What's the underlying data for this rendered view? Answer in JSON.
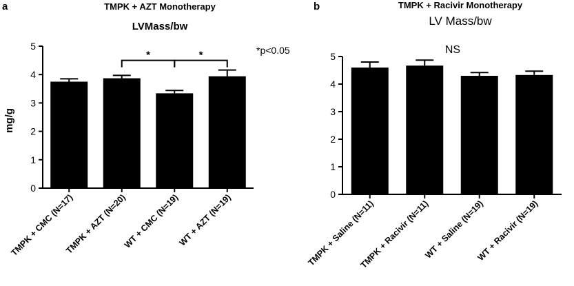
{
  "chart_data": [
    {
      "type": "bar",
      "panel_label": "a",
      "title": "TMPK + AZT Monotherapy",
      "subtitle": "LVMass/bw",
      "xlabel": "",
      "ylabel": "mg/g",
      "ylim": [
        0,
        5
      ],
      "yticks": [
        "0",
        "1",
        "2",
        "3",
        "4",
        "5"
      ],
      "categories": [
        "TMPK + CMC (N=17)",
        "TMPK + AZT (N=20)",
        "WT + CMC (N=19)",
        "WT + AZT (N=19)"
      ],
      "values": [
        3.75,
        3.87,
        3.34,
        3.94
      ],
      "errors": [
        0.1,
        0.1,
        0.1,
        0.22
      ],
      "bar_color": "#000000",
      "grid": false,
      "annotations": [
        {
          "text": "*",
          "from": 1,
          "to": 2,
          "y": 4.5
        },
        {
          "text": "*",
          "from": 2,
          "to": 3,
          "y": 4.5
        }
      ],
      "note": "*p<0.05"
    },
    {
      "type": "bar",
      "panel_label": "b",
      "title": "TMPK + Racivir Monotherapy",
      "subtitle": "LV Mass/bw",
      "xlabel": "",
      "ylabel": "",
      "ylim": [
        0,
        5
      ],
      "yticks": [
        "0",
        "1",
        "2",
        "3",
        "4",
        "5"
      ],
      "categories": [
        "TMPK + Saline (N=11)",
        "TMPK + Racivir (N=11)",
        "WT + Saline (N=19)",
        "WT + Racivir (N=19)"
      ],
      "values": [
        4.6,
        4.67,
        4.3,
        4.33
      ],
      "errors": [
        0.2,
        0.2,
        0.12,
        0.14
      ],
      "bar_color": "#000000",
      "grid": false,
      "annotations": [],
      "note": "NS"
    }
  ]
}
